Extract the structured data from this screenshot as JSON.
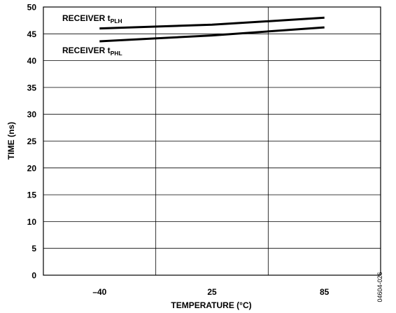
{
  "chart_data": {
    "type": "line",
    "xlabel": "TEMPERATURE (°C)",
    "ylabel": "TIME (ns)",
    "categories": [
      "–40",
      "25",
      "85"
    ],
    "ylim": [
      0,
      50
    ],
    "yticks": [
      0,
      5,
      10,
      15,
      20,
      25,
      30,
      35,
      40,
      45,
      50
    ],
    "grid": true,
    "series": [
      {
        "name": "RECEIVER tPLH",
        "label_main": "RECEIVER t",
        "label_sub": "PLH",
        "values": [
          46.0,
          46.7,
          48.0
        ]
      },
      {
        "name": "RECEIVER tPHL",
        "label_main": "RECEIVER t",
        "label_sub": "PHL",
        "values": [
          43.6,
          44.7,
          46.2
        ]
      }
    ]
  },
  "figure_id": "04604-026"
}
